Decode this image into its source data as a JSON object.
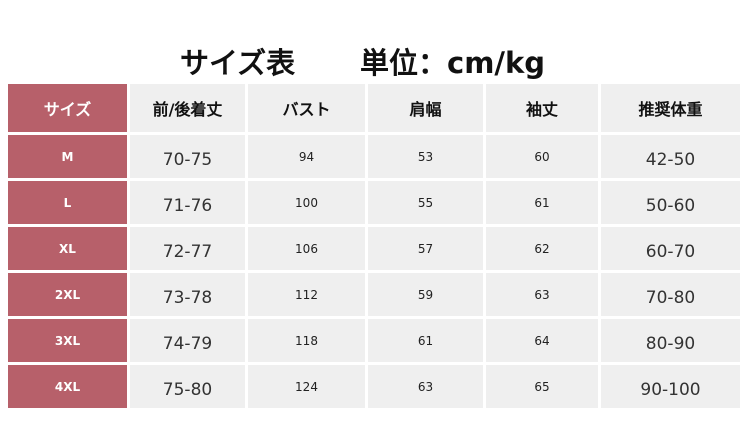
{
  "title": "サイズ表",
  "unit": "単位：cm/kg",
  "colors": {
    "size_column": "#b7606a",
    "cell": "#efefef"
  },
  "headers": [
    "サイズ",
    "前/後着丈",
    "バスト",
    "肩幅",
    "袖丈",
    "推奨体重"
  ],
  "rows": [
    [
      "M",
      "70-75",
      "94",
      "53",
      "60",
      "42-50"
    ],
    [
      "L",
      "71-76",
      "100",
      "55",
      "61",
      "50-60"
    ],
    [
      "XL",
      "72-77",
      "106",
      "57",
      "62",
      "60-70"
    ],
    [
      "2XL",
      "73-78",
      "112",
      "59",
      "63",
      "70-80"
    ],
    [
      "3XL",
      "74-79",
      "118",
      "61",
      "64",
      "80-90"
    ],
    [
      "4XL",
      "75-80",
      "124",
      "63",
      "65",
      "90-100"
    ]
  ]
}
